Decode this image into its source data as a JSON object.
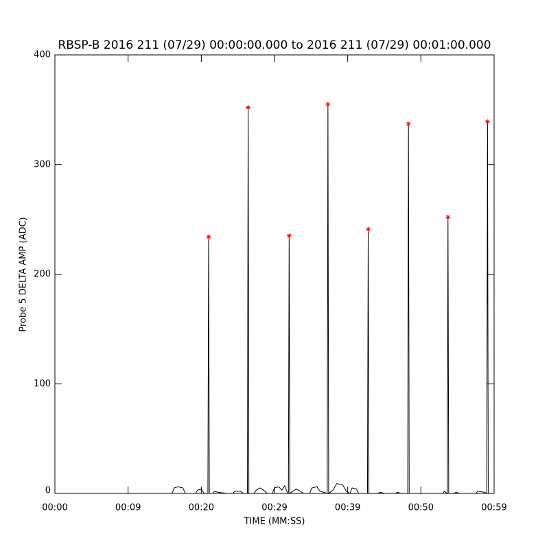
{
  "chart_data": {
    "type": "line",
    "title": "RBSP-B 2016 211 (07/29) 00:00:00.000 to 2016 211 (07/29) 00:01:00.000",
    "x_label": "TIME (MM:SS)",
    "y_label": "Probe 5 DELTA AMP (ADC)",
    "xlim": [
      0,
      60
    ],
    "xticks": [
      {
        "value": 0,
        "label": "00:00"
      },
      {
        "value": 10,
        "label": "00:09"
      },
      {
        "value": 20,
        "label": "00:20"
      },
      {
        "value": 30,
        "label": "00:29"
      },
      {
        "value": 40,
        "label": "00:39"
      },
      {
        "value": 50,
        "label": "00:50"
      },
      {
        "value": 60,
        "label": "00:59"
      }
    ],
    "ylim": [
      0,
      400
    ],
    "yticks": [
      0,
      100,
      200,
      300,
      400
    ],
    "series": [
      {
        "color": "#000000",
        "marker": "none",
        "x": [
          0,
          16,
          16.3,
          16.8,
          17.5,
          17.8,
          19.2,
          19.5,
          20,
          20.4,
          20.9,
          21.0,
          21.1,
          21.6,
          21.8,
          22.3,
          23.5,
          24.3,
          24.6,
          25.3,
          25.8,
          26.3,
          26.4,
          26.5,
          27.2,
          27.5,
          28,
          28.5,
          29,
          29.7,
          30,
          30.6,
          31,
          31.4,
          31.8,
          31.9,
          32.0,
          32.1,
          32.5,
          33,
          33.5,
          34,
          34.8,
          35.1,
          35.8,
          36.2,
          37.2,
          37.3,
          37.4,
          38,
          38.5,
          39.3,
          39.8,
          40.3,
          40.6,
          41.2,
          41.5,
          42.7,
          42.8,
          42.9,
          44,
          44.5,
          45,
          46.5,
          46.8,
          47.3,
          48.2,
          48.3,
          48.4,
          53,
          53.2,
          53.6,
          53.7,
          53.8,
          54.5,
          54.8,
          55.3,
          57.5,
          57.8,
          58.7,
          59.0,
          59.1,
          59.2
        ],
        "values": [
          0,
          0,
          5,
          6,
          5,
          0,
          0,
          3,
          4,
          0,
          0,
          234,
          0,
          0,
          2,
          1,
          0,
          0,
          2,
          2,
          0,
          0,
          352,
          0,
          0,
          3,
          5,
          3,
          0,
          0,
          5,
          6,
          3,
          7,
          0,
          0,
          235,
          0,
          2,
          4,
          2,
          0,
          0,
          5,
          6,
          2,
          0,
          355,
          0,
          3,
          9,
          8,
          2,
          0,
          5,
          4,
          0,
          0,
          241,
          0,
          0,
          1,
          0,
          0,
          1,
          0,
          0,
          337,
          0,
          0,
          2,
          0,
          252,
          0,
          0,
          1,
          0,
          0,
          2,
          1,
          0,
          339,
          0
        ]
      },
      {
        "color": "#ff0000",
        "marker": "asterisk",
        "x": [
          21.0,
          26.4,
          32.0,
          37.3,
          42.8,
          48.3,
          53.7,
          59.1
        ],
        "values": [
          234,
          352,
          235,
          355,
          241,
          337,
          252,
          339
        ]
      }
    ]
  }
}
